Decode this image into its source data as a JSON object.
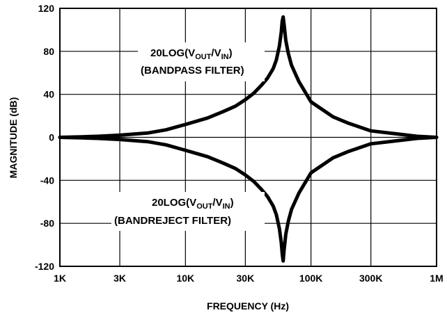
{
  "chart_data": {
    "type": "line",
    "xscale": "log",
    "xlim": [
      1000,
      1000000
    ],
    "ylim": [
      -120,
      120
    ],
    "grid": true,
    "xlabel": "FREQUENCY (Hz)",
    "ylabel": "MAGNITUDE (dB)",
    "x_ticks": [
      {
        "value": 1000,
        "label": "1K"
      },
      {
        "value": 3000,
        "label": "3K"
      },
      {
        "value": 10000,
        "label": "10K"
      },
      {
        "value": 30000,
        "label": "30K"
      },
      {
        "value": 100000,
        "label": "100K"
      },
      {
        "value": 300000,
        "label": "300K"
      },
      {
        "value": 1000000,
        "label": "1M"
      }
    ],
    "y_ticks": [
      {
        "value": 120,
        "label": "120"
      },
      {
        "value": 80,
        "label": "80"
      },
      {
        "value": 40,
        "label": "40"
      },
      {
        "value": 0,
        "label": "0"
      },
      {
        "value": -40,
        "label": "-40"
      },
      {
        "value": -80,
        "label": "-80"
      },
      {
        "value": -120,
        "label": "-120"
      }
    ],
    "annotations": {
      "bandpass": {
        "main": "20LOG(V",
        "sub1": "OUT",
        "mid": "/V",
        "sub2": "IN",
        "close": ")",
        "line2": "(BANDPASS FILTER)"
      },
      "bandreject": {
        "main": "20LOG(V",
        "sub1": "OUT",
        "mid": "/V",
        "sub2": "IN",
        "close": ")",
        "line2": "(BANDREJECT FILTER)"
      }
    },
    "series": [
      {
        "x": [
          1000,
          1500,
          2000,
          3000,
          5000,
          7000,
          10000,
          15000,
          20000,
          25000,
          30000,
          35000,
          40000,
          45000,
          50000,
          53000,
          56000,
          58000,
          59000,
          60000,
          61000,
          63000,
          66000,
          70000,
          80000,
          100000,
          150000,
          200000,
          300000,
          500000,
          700000,
          1000000
        ],
        "values": [
          0,
          0.5,
          1,
          2,
          4,
          7,
          12,
          18,
          24,
          29,
          35,
          41,
          48,
          55,
          64,
          72,
          85,
          98,
          108,
          112,
          105,
          90,
          78,
          67,
          52,
          33,
          19,
          13,
          6,
          3,
          1,
          0
        ]
      },
      {
        "x": [
          1000,
          1500,
          2000,
          3000,
          5000,
          7000,
          10000,
          15000,
          20000,
          25000,
          30000,
          35000,
          40000,
          45000,
          50000,
          53000,
          56000,
          58000,
          59000,
          60000,
          61000,
          63000,
          66000,
          70000,
          80000,
          100000,
          150000,
          200000,
          300000,
          500000,
          700000,
          1000000
        ],
        "values": [
          0,
          -0.5,
          -1,
          -2,
          -4,
          -7,
          -12,
          -18,
          -24,
          -29,
          -35,
          -41,
          -48,
          -55,
          -64,
          -72,
          -85,
          -98,
          -108,
          -115,
          -105,
          -90,
          -78,
          -67,
          -52,
          -33,
          -19,
          -13,
          -6,
          -3,
          -1,
          0
        ]
      }
    ]
  }
}
